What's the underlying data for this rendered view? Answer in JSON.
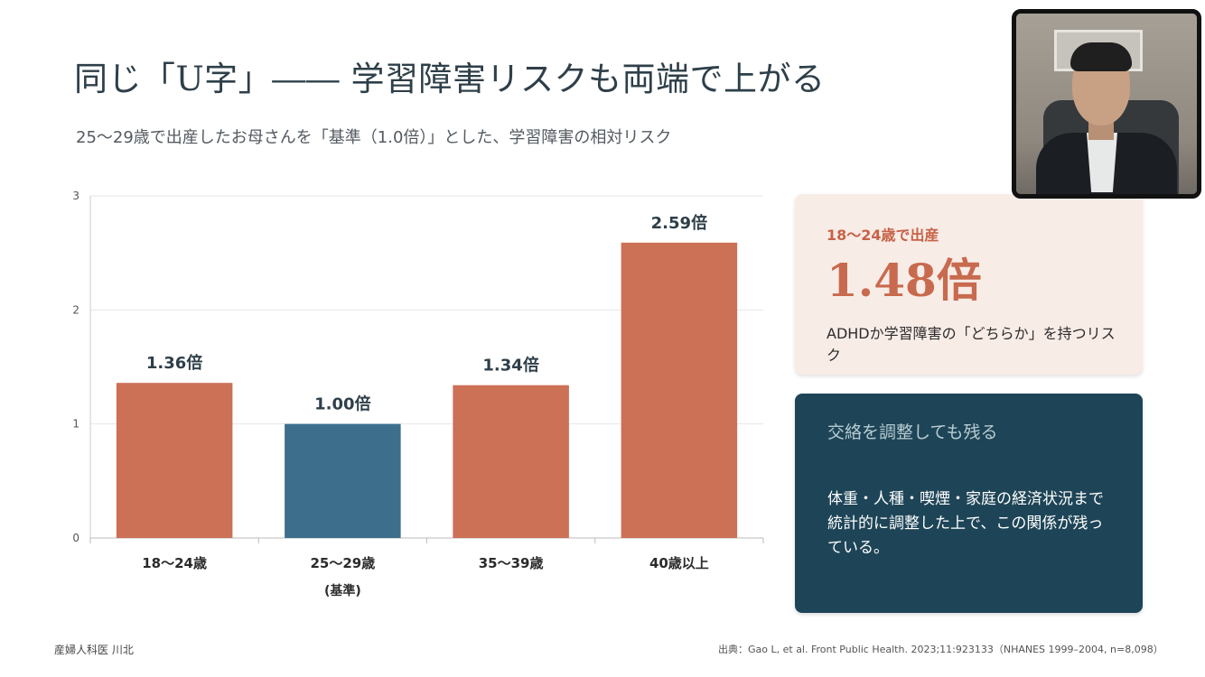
{
  "slide": {
    "title": "同じ「U字」―― 学習障害リスクも両端で上がる",
    "subtitle": "25〜29歳で出産したお母さんを「基準（1.0倍）」とした、学習障害の相対リスク"
  },
  "chart_data": {
    "type": "bar",
    "categories": [
      "18〜24歳",
      "25〜29歳",
      "35〜39歳",
      "40歳以上"
    ],
    "category_sublabels": [
      "",
      "(基準)",
      "",
      ""
    ],
    "values": [
      1.36,
      1.0,
      1.34,
      2.59
    ],
    "data_labels": [
      "1.36倍",
      "1.00倍",
      "1.34倍",
      "2.59倍"
    ],
    "bar_colors": [
      "#cc7056",
      "#3d6f8d",
      "#cc7056",
      "#cc7056"
    ],
    "ylim": [
      0,
      3
    ],
    "yticks": [
      0,
      1,
      2,
      3
    ],
    "grid": true,
    "title": "",
    "xlabel": "",
    "ylabel": ""
  },
  "cards": {
    "peach": {
      "heading": "18〜24歳で出産",
      "big_value": "1.48倍",
      "description": "ADHDか学習障害の「どちらか」を持つリスク"
    },
    "dark": {
      "heading": "交絡を調整しても残る",
      "body": "体重・人種・喫煙・家庭の経済状況まで統計的に調整した上で、この関係が残っている。"
    }
  },
  "footer": {
    "left": "産婦人科医 川北",
    "right": "出典：Gao L, et al. Front Public Health. 2023;11:923133（NHANES 1999–2004, n=8,098）"
  },
  "colors": {
    "accent_orange": "#cc7056",
    "accent_blue": "#3d6f8d",
    "card_dark": "#1e4557",
    "card_peach": "#f8ece7"
  }
}
